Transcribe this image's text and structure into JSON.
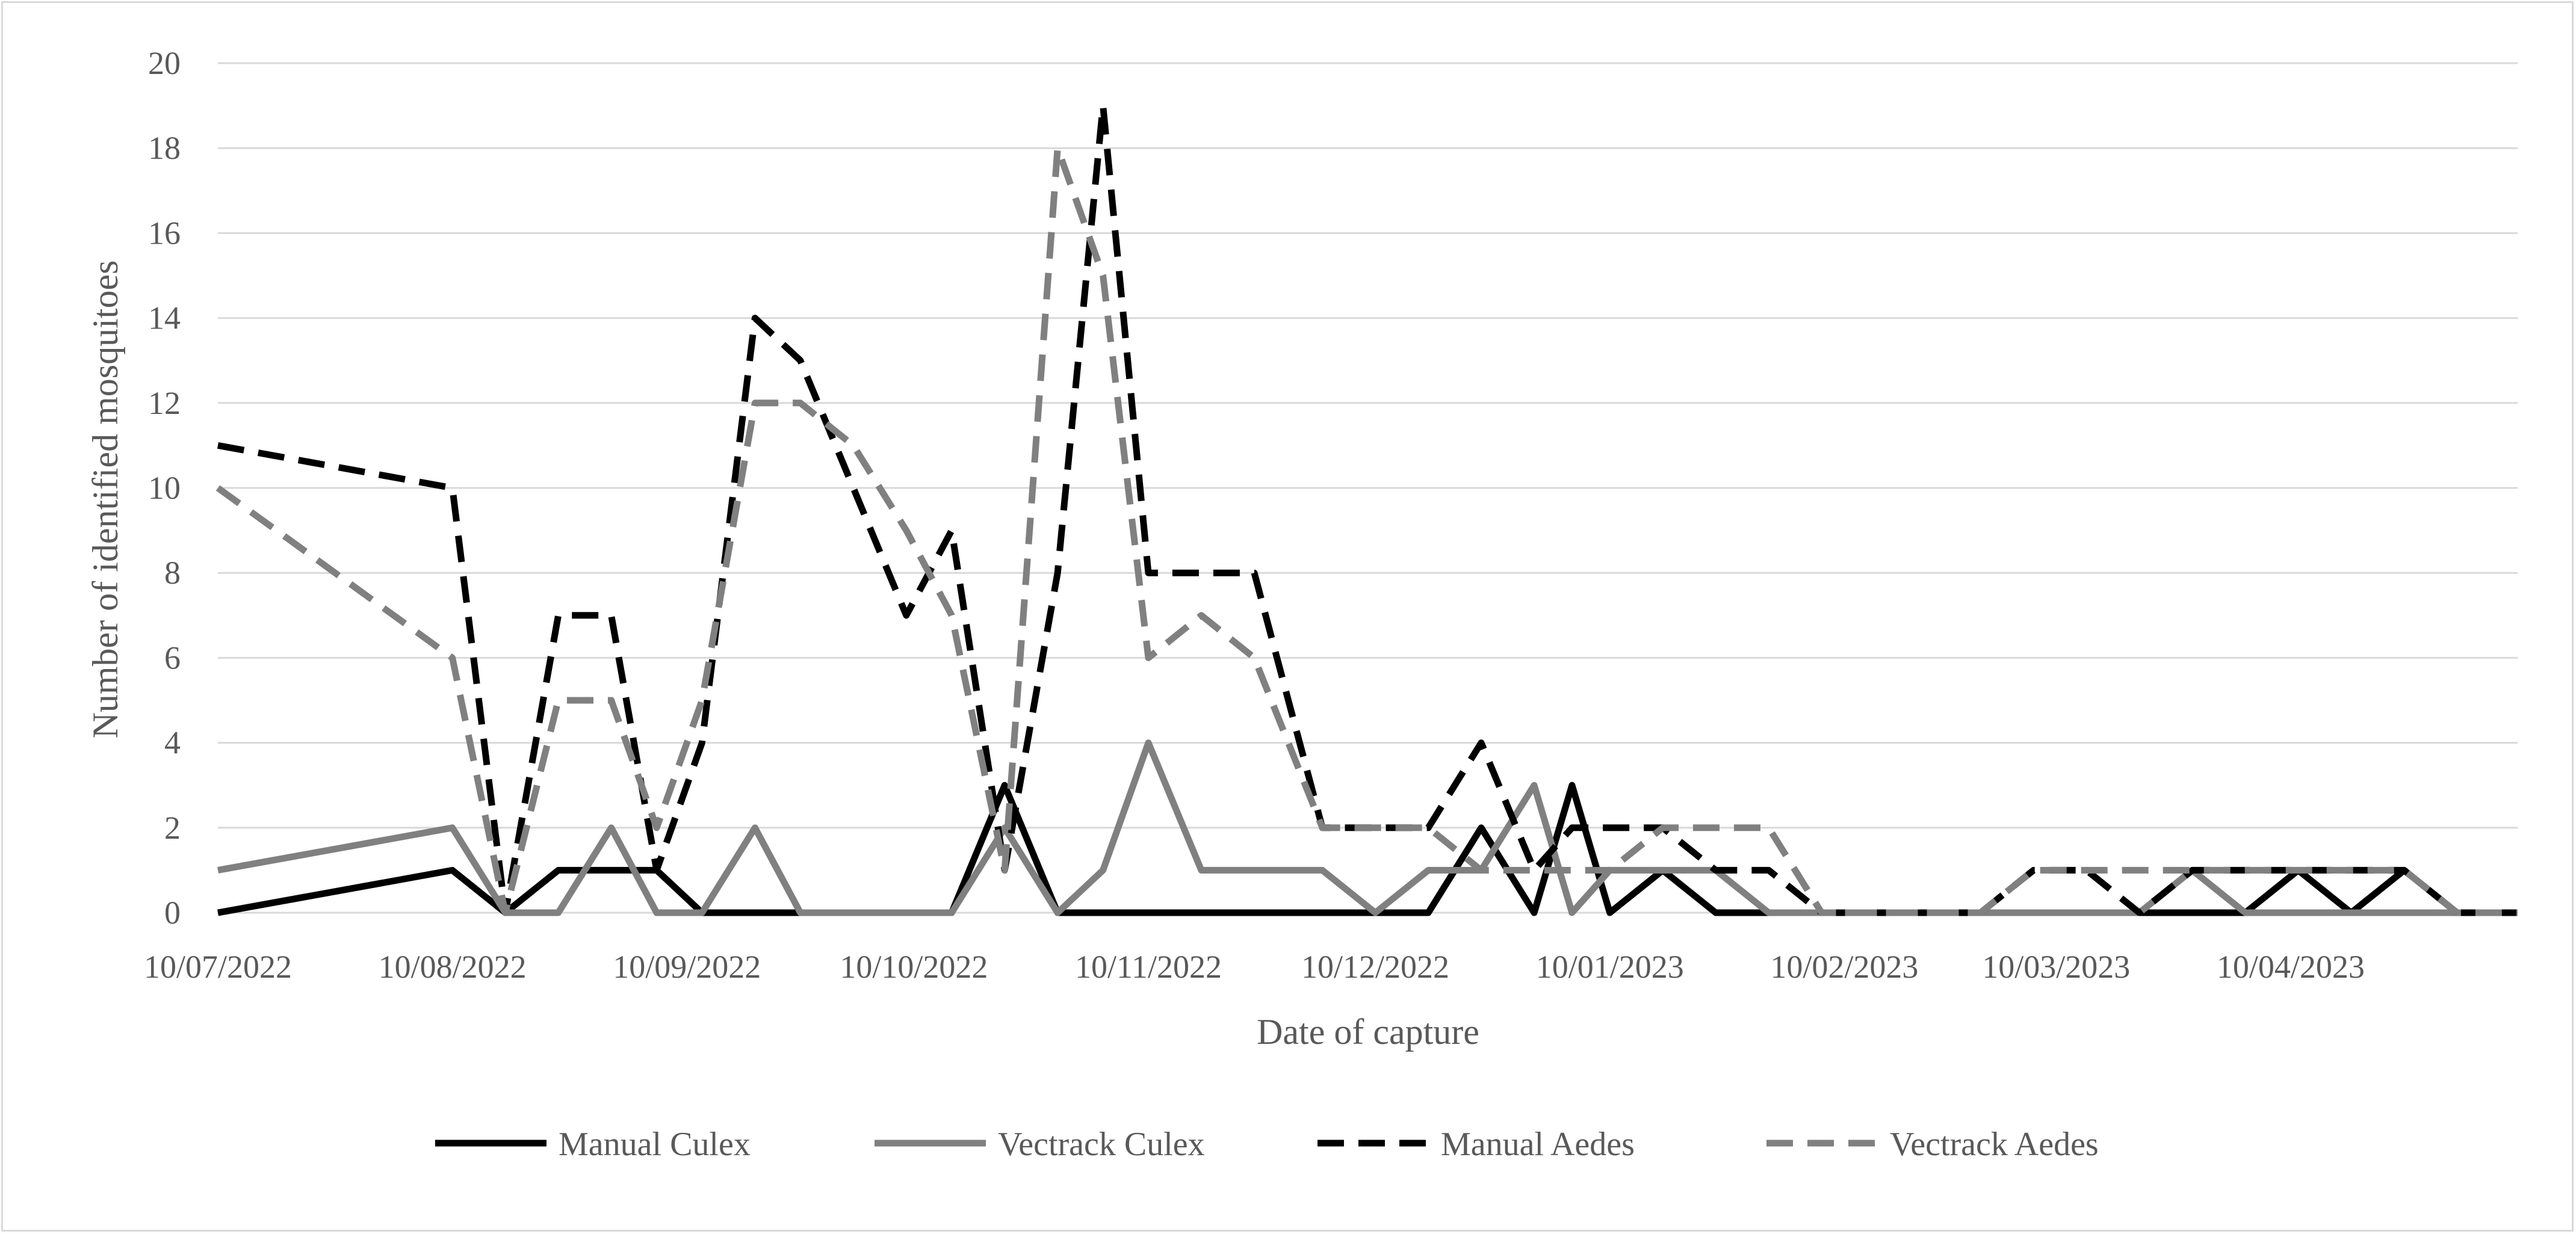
{
  "chart_data": {
    "type": "line",
    "title": "",
    "xlabel": "Date of capture",
    "ylabel": "Number of identified mosquitoes",
    "ylim": [
      0,
      20
    ],
    "yticks": [
      0,
      2,
      4,
      6,
      8,
      10,
      12,
      14,
      16,
      18,
      20
    ],
    "xlim": [
      "2022-07-10",
      "2023-05-10"
    ],
    "xticks": [
      {
        "date": "2022-07-10",
        "label": "10/07/2022"
      },
      {
        "date": "2022-08-10",
        "label": "10/08/2022"
      },
      {
        "date": "2022-09-10",
        "label": "10/09/2022"
      },
      {
        "date": "2022-10-10",
        "label": "10/10/2022"
      },
      {
        "date": "2022-11-10",
        "label": "10/11/2022"
      },
      {
        "date": "2022-12-10",
        "label": "10/12/2022"
      },
      {
        "date": "2023-01-10",
        "label": "10/01/2023"
      },
      {
        "date": "2023-02-10",
        "label": "10/02/2023"
      },
      {
        "date": "2023-03-10",
        "label": "10/03/2023"
      },
      {
        "date": "2023-04-10",
        "label": "10/04/2023"
      }
    ],
    "grid": "horizontal",
    "legend": "bottom",
    "x": [
      "2022-07-10",
      "2022-08-10",
      "2022-08-17",
      "2022-08-24",
      "2022-08-31",
      "2022-09-06",
      "2022-09-12",
      "2022-09-19",
      "2022-09-25",
      "2022-10-02",
      "2022-10-09",
      "2022-10-15",
      "2022-10-22",
      "2022-10-29",
      "2022-11-04",
      "2022-11-10",
      "2022-11-17",
      "2022-11-24",
      "2022-12-03",
      "2022-12-10",
      "2022-12-17",
      "2022-12-24",
      "2022-12-31",
      "2023-01-05",
      "2023-01-10",
      "2023-01-17",
      "2023-01-24",
      "2023-01-31",
      "2023-02-07",
      "2023-02-14",
      "2023-02-21",
      "2023-02-28",
      "2023-03-07",
      "2023-03-14",
      "2023-03-21",
      "2023-03-28",
      "2023-04-04",
      "2023-04-11",
      "2023-04-18",
      "2023-04-25",
      "2023-05-02",
      "2023-05-10"
    ],
    "series": [
      {
        "name": "Manual Culex",
        "color": "#000000",
        "dash": "solid",
        "values": [
          0,
          1,
          0,
          1,
          1,
          1,
          0,
          0,
          0,
          0,
          0,
          0,
          3,
          0,
          0,
          0,
          0,
          0,
          0,
          0,
          0,
          2,
          0,
          3,
          0,
          1,
          0,
          0,
          0,
          0,
          0,
          0,
          0,
          0,
          0,
          0,
          0,
          1,
          0,
          1,
          0,
          0
        ]
      },
      {
        "name": "Vectrack Culex",
        "color": "#808080",
        "dash": "solid",
        "values": [
          1,
          2,
          0,
          0,
          2,
          0,
          0,
          2,
          0,
          0,
          0,
          0,
          2,
          0,
          1,
          4,
          1,
          1,
          1,
          0,
          1,
          1,
          3,
          0,
          1,
          1,
          1,
          0,
          0,
          0,
          0,
          0,
          0,
          0,
          0,
          1,
          0,
          0,
          0,
          0,
          0,
          0
        ]
      },
      {
        "name": "Manual Aedes",
        "color": "#000000",
        "dash": "dashed",
        "values": [
          11,
          10,
          0,
          7,
          7,
          1,
          4,
          14,
          13,
          10,
          7,
          9,
          1,
          8,
          19,
          8,
          8,
          8,
          2,
          2,
          2,
          4,
          1,
          2,
          2,
          2,
          1,
          1,
          0,
          0,
          0,
          0,
          1,
          1,
          0,
          1,
          1,
          1,
          1,
          1,
          0,
          0
        ]
      },
      {
        "name": "Vectrack Aedes",
        "color": "#808080",
        "dash": "dashed",
        "values": [
          10,
          6,
          0,
          5,
          5,
          2,
          5,
          12,
          12,
          11,
          9,
          7,
          1,
          18,
          15,
          6,
          7,
          6,
          2,
          2,
          2,
          1,
          1,
          1,
          1,
          2,
          2,
          2,
          0,
          0,
          0,
          0,
          1,
          1,
          1,
          1,
          1,
          1,
          1,
          1,
          0,
          0
        ]
      }
    ]
  }
}
